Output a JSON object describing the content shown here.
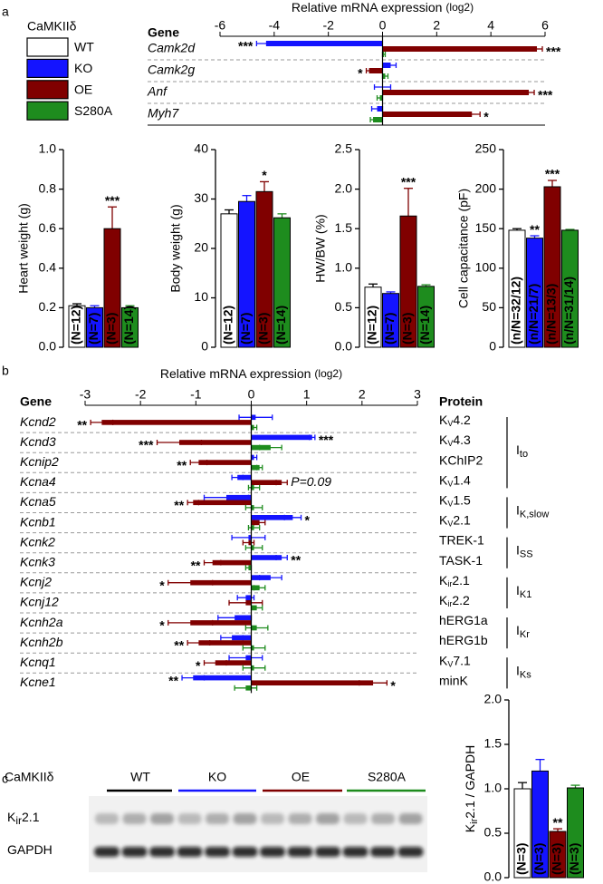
{
  "panel_labels": [
    "a",
    "b",
    "c"
  ],
  "legend": {
    "title": "CaMKIIδ",
    "names": [
      "WT",
      "KO",
      "OE",
      "S280A"
    ],
    "colors": [
      "#ffffff",
      "#1414ff",
      "#800000",
      "#1e8c1e"
    ]
  },
  "blot": {
    "group_label": "CaMKIIδ",
    "lanes": [
      "WT",
      "KO",
      "OE",
      "S280A"
    ],
    "lane_colors": [
      "#000000",
      "#1414ff",
      "#800000",
      "#1e8c1e"
    ],
    "rows": [
      [
        "K",
        "ir",
        "2.1"
      ],
      [
        "GAPDH"
      ]
    ]
  },
  "chart_data": [
    {
      "type": "hbar",
      "xlabel": "Relative mRNA expression",
      "xlabel_unit": "(log2)",
      "header": "Gene",
      "xlim": [
        -6,
        6
      ],
      "xticks": [
        -6,
        -4,
        -2,
        0,
        2,
        4,
        6
      ],
      "colors": [
        "#1414ff",
        "#800000",
        "#1e8c1e"
      ],
      "rows": [
        {
          "gene": "Camk2d",
          "values": [
            -4.3,
            5.7,
            0.05
          ],
          "errors": [
            0.35,
            0.2,
            0.05
          ],
          "annotations": [
            "***",
            "***",
            null
          ]
        },
        {
          "gene": "Camk2g",
          "values": [
            0.3,
            -0.5,
            0.1
          ],
          "errors": [
            0.2,
            0.1,
            0.1
          ],
          "annotations": [
            null,
            "*",
            null
          ]
        },
        {
          "gene": "Anf",
          "values": [
            0,
            5.4,
            -0.1
          ],
          "errors": [
            0.3,
            0.2,
            0.1
          ],
          "annotations": [
            null,
            "***",
            null
          ]
        },
        {
          "gene": "Myh7",
          "values": [
            -0.2,
            3.3,
            -0.35
          ],
          "errors": [
            0.2,
            0.3,
            0.1
          ],
          "annotations": [
            null,
            "*",
            null
          ]
        }
      ]
    },
    {
      "type": "bar",
      "ylabel": "Heart weight (g)",
      "ylim": [
        0,
        1.0
      ],
      "yticks": [
        {
          "value": 0,
          "label": "0.0"
        },
        0.2,
        0.4,
        0.6,
        0.8,
        {
          "value": 1,
          "label": "1.0"
        }
      ],
      "colors": [
        "#ffffff",
        "#1414ff",
        "#800000",
        "#1e8c1e"
      ],
      "values": [
        0.21,
        0.2,
        0.6,
        0.2
      ],
      "errors": [
        0.01,
        0.01,
        0.11,
        0.01
      ],
      "n_labels": [
        "(N=12)",
        "(N=7)",
        "(N=3)",
        "(N=14)"
      ],
      "annotations": [
        null,
        null,
        "***",
        null
      ]
    },
    {
      "type": "bar",
      "ylabel": "Body weight (g)",
      "ylim": [
        0,
        40
      ],
      "yticks": [
        0,
        10,
        20,
        30,
        40
      ],
      "colors": [
        "#ffffff",
        "#1414ff",
        "#800000",
        "#1e8c1e"
      ],
      "values": [
        27,
        29.5,
        31.5,
        26.2
      ],
      "errors": [
        0.8,
        1.2,
        2,
        0.8
      ],
      "n_labels": [
        "(N=12)",
        "(N=7)",
        "(N=3)",
        "(N=14)"
      ],
      "annotations": [
        null,
        null,
        "*",
        null
      ]
    },
    {
      "type": "bar",
      "ylabel": "HW/BW (%)",
      "ylim": [
        0,
        2.5
      ],
      "yticks": [
        {
          "value": 0,
          "label": "0.0"
        },
        0.5,
        {
          "value": 1,
          "label": "1.0"
        },
        1.5,
        {
          "value": 2,
          "label": "2.0"
        },
        2.5
      ],
      "colors": [
        "#ffffff",
        "#1414ff",
        "#800000",
        "#1e8c1e"
      ],
      "values": [
        0.76,
        0.68,
        1.66,
        0.77
      ],
      "errors": [
        0.04,
        0.02,
        0.35,
        0.02
      ],
      "n_labels": [
        "(N=12)",
        "(N=7)",
        "(N=3)",
        "(N=14)"
      ],
      "annotations": [
        null,
        null,
        "***",
        null
      ]
    },
    {
      "type": "bar",
      "ylabel": "Cell capacitance (pF)",
      "ylim": [
        0,
        250
      ],
      "yticks": [
        0,
        50,
        100,
        150,
        200,
        250
      ],
      "colors": [
        "#ffffff",
        "#1414ff",
        "#800000",
        "#1e8c1e"
      ],
      "values": [
        148,
        138,
        203,
        148
      ],
      "errors": [
        2,
        3,
        8,
        1
      ],
      "n_labels": [
        "(n/N=32/12)",
        "(n/N=21/7)",
        "(n/N=13/3)",
        "(n/N=31/14)"
      ],
      "annotations": [
        null,
        "**",
        "***",
        null
      ]
    },
    {
      "type": "hbar",
      "xlabel": "Relative mRNA expression",
      "xlabel_unit": "(log2)",
      "header": "Gene",
      "protein_header": "Protein",
      "xlim": [
        -3,
        3
      ],
      "xticks": [
        -3,
        -2,
        -1,
        0,
        1,
        2,
        3
      ],
      "colors": [
        "#1414ff",
        "#800000",
        "#1e8c1e"
      ],
      "groups": [
        {
          "current": [
            "I",
            "to"
          ],
          "rows": [
            {
              "gene": "Kcnd2",
              "protein": [
                "K",
                "V",
                "4.2"
              ],
              "values": [
                0.08,
                -2.7,
                0.05
              ],
              "errors": [
                0.3,
                0.2,
                0.05
              ],
              "annotations": [
                null,
                "**",
                null
              ]
            },
            {
              "gene": "Kcnd3",
              "protein": [
                "K",
                "V",
                "4.3"
              ],
              "values": [
                1.1,
                -1.3,
                0.35
              ],
              "errors": [
                0.05,
                0.4,
                0.2
              ],
              "annotations": [
                "***",
                "***",
                null
              ]
            },
            {
              "gene": "Kcnip2",
              "protein": [
                "KChIP2"
              ],
              "values": [
                0.05,
                -0.95,
                0.15
              ],
              "errors": [
                0.05,
                0.15,
                0.05
              ],
              "annotations": [
                null,
                "**",
                null
              ]
            },
            {
              "gene": "Kcna4",
              "protein": [
                "K",
                "V",
                "1.4"
              ],
              "values": [
                -0.25,
                0.55,
                0.05
              ],
              "errors": [
                0.1,
                0.1,
                0.1
              ],
              "annotations": [
                null,
                "P=0.09",
                null
              ]
            }
          ]
        },
        {
          "current": [
            "I",
            "K,slow"
          ],
          "rows": [
            {
              "gene": "Kcna5",
              "protein": [
                "K",
                "V",
                "1.5"
              ],
              "values": [
                -0.45,
                -1.05,
                0.05
              ],
              "errors": [
                0.4,
                0.1,
                0.15
              ],
              "annotations": [
                null,
                "**",
                null
              ]
            },
            {
              "gene": "Kcnb1",
              "protein": [
                "K",
                "V",
                "2.1"
              ],
              "values": [
                0.75,
                0.15,
                0.05
              ],
              "errors": [
                0.15,
                0.1,
                0.1
              ],
              "annotations": [
                "*",
                null,
                null
              ]
            }
          ]
        },
        {
          "current": [
            "I",
            "SS"
          ],
          "rows": [
            {
              "gene": "Kcnk2",
              "protein": [
                "TREK-1"
              ],
              "values": [
                -0.05,
                -0.05,
                0.05
              ],
              "errors": [
                0.3,
                0.1,
                0.15
              ],
              "annotations": [
                null,
                null,
                null
              ]
            },
            {
              "gene": "Kcnk3",
              "protein": [
                "TASK-1"
              ],
              "values": [
                0.55,
                -0.7,
                -0.05
              ],
              "errors": [
                0.1,
                0.15,
                0.05
              ],
              "annotations": [
                "**",
                "**",
                null
              ]
            }
          ]
        },
        {
          "current": [
            "I",
            "K1"
          ],
          "rows": [
            {
              "gene": "Kcnj2",
              "protein": [
                "K",
                "ir",
                "2.1"
              ],
              "values": [
                0.35,
                -1.1,
                0.15
              ],
              "errors": [
                0.2,
                0.4,
                0.1
              ],
              "annotations": [
                null,
                "*",
                null
              ]
            },
            {
              "gene": "Kcnj12",
              "protein": [
                "K",
                "ir",
                "2.2"
              ],
              "values": [
                -0.1,
                -0.1,
                0.1
              ],
              "errors": [
                0.15,
                0.3,
                0.1
              ],
              "annotations": [
                null,
                null,
                null
              ]
            }
          ]
        },
        {
          "current": [
            "I",
            "Kr"
          ],
          "rows": [
            {
              "gene": "Kcnh2a",
              "protein": [
                "hERG1a"
              ],
              "values": [
                -0.3,
                -1.1,
                0.1
              ],
              "errors": [
                0.3,
                0.4,
                0.2
              ],
              "annotations": [
                null,
                "*",
                null
              ]
            },
            {
              "gene": "Kcnh2b",
              "protein": [
                "hERG1b"
              ],
              "values": [
                -0.35,
                -0.95,
                0.05
              ],
              "errors": [
                0.2,
                0.2,
                0.2
              ],
              "annotations": [
                null,
                "**",
                null
              ]
            }
          ]
        },
        {
          "current": [
            "I",
            "Ks"
          ],
          "rows": [
            {
              "gene": "Kcnq1",
              "protein": [
                "K",
                "V",
                "7.1"
              ],
              "values": [
                -0.1,
                -0.65,
                0.05
              ],
              "errors": [
                0.3,
                0.2,
                0.2
              ],
              "annotations": [
                null,
                "*",
                null
              ]
            },
            {
              "gene": "Kcne1",
              "protein": [
                "minK"
              ],
              "values": [
                -1.05,
                2.2,
                -0.1
              ],
              "errors": [
                0.2,
                0.25,
                0.2
              ],
              "annotations": [
                "**",
                "*",
                null
              ]
            }
          ]
        }
      ]
    },
    {
      "type": "bar",
      "ylabel": [
        "K",
        "ir",
        "2.1 / GAPDH"
      ],
      "ylim": [
        0,
        2.0
      ],
      "yticks": [
        {
          "value": 0,
          "label": "0.0"
        },
        0.5,
        {
          "value": 1,
          "label": "1.0"
        },
        1.5,
        {
          "value": 2,
          "label": "2.0"
        }
      ],
      "colors": [
        "#ffffff",
        "#1414ff",
        "#800000",
        "#1e8c1e"
      ],
      "values": [
        1.0,
        1.2,
        0.52,
        1.01
      ],
      "errors": [
        0.07,
        0.13,
        0.03,
        0.03
      ],
      "n_labels": [
        "(N=3)",
        "(N=3)",
        "(N=3)",
        "(N=3)"
      ],
      "annotations": [
        null,
        null,
        "**",
        null
      ]
    }
  ]
}
